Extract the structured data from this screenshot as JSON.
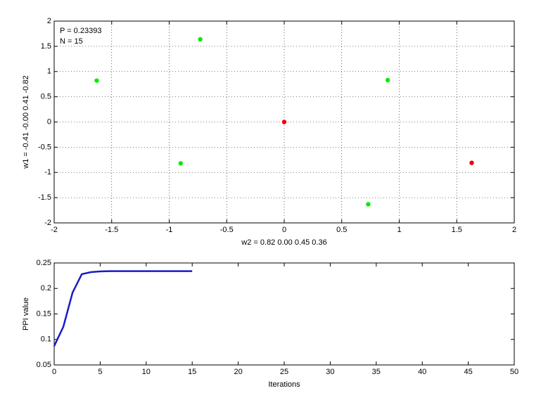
{
  "chart_data": [
    {
      "type": "scatter",
      "annotations": [
        "P = 0.23393",
        "N = 15"
      ],
      "xlabel": "w2 = 0.82  0.00  0.45  0.36",
      "ylabel": "w1 = -0.41  -0.00  0.41  -0.82",
      "xlim": [
        -2,
        2
      ],
      "ylim": [
        -2,
        2
      ],
      "xticks": [
        -2,
        -1.5,
        -1,
        -0.5,
        0,
        0.5,
        1,
        1.5,
        2
      ],
      "yticks": [
        -2,
        -1.5,
        -1,
        -0.5,
        0,
        0.5,
        1,
        1.5,
        2
      ],
      "grid": true,
      "series": [
        {
          "color": "#00ee00",
          "x": [
            -1.63,
            -0.73,
            0.9,
            -0.9,
            0.73
          ],
          "values": [
            0.82,
            1.64,
            0.83,
            -0.82,
            -1.63
          ]
        },
        {
          "color": "#ee0000",
          "x": [
            0,
            1.63
          ],
          "values": [
            0,
            -0.81
          ]
        }
      ]
    },
    {
      "type": "line",
      "xlabel": "Iterations",
      "ylabel": "PPI value",
      "xlim": [
        0,
        50
      ],
      "ylim": [
        0.05,
        0.25
      ],
      "xticks": [
        0,
        5,
        10,
        15,
        20,
        25,
        30,
        35,
        40,
        45,
        50
      ],
      "yticks": [
        0.05,
        0.1,
        0.15,
        0.2,
        0.25
      ],
      "grid": false,
      "color": "#1a1acc",
      "x": [
        0,
        1,
        2,
        3,
        4,
        5,
        6,
        7,
        8,
        9,
        10,
        11,
        12,
        13,
        14,
        15
      ],
      "values": [
        0.087,
        0.125,
        0.192,
        0.228,
        0.232,
        0.2335,
        0.2339,
        0.2339,
        0.2339,
        0.2339,
        0.2339,
        0.2339,
        0.2339,
        0.2339,
        0.2339,
        0.2339
      ]
    }
  ]
}
